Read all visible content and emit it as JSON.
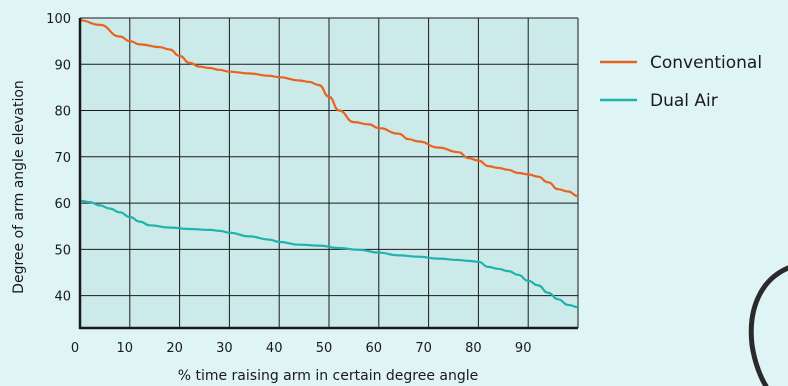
{
  "chart_data": {
    "type": "line",
    "xlabel": "% time raising arm in certain degree angle",
    "ylabel": "Degree of arm angle elevation",
    "xlim": [
      0,
      100
    ],
    "ylim": [
      33,
      100
    ],
    "x_ticks": [
      0,
      10,
      20,
      30,
      40,
      50,
      60,
      70,
      80,
      90
    ],
    "y_ticks": [
      40,
      50,
      60,
      70,
      80,
      90,
      100
    ],
    "grid": true,
    "legend_position": "right",
    "colors": {
      "plot_bg": "#cdeaea",
      "grid": "#1a1a1a",
      "axis": "#1a1a1a",
      "page_bg": "#dff4f4"
    },
    "series": [
      {
        "name": "Conventional",
        "color": "#e8641e",
        "x": [
          0,
          4,
          8,
          10,
          12,
          16,
          18,
          20,
          22,
          24,
          26,
          28,
          30,
          34,
          38,
          40,
          44,
          46,
          48,
          50,
          52,
          55,
          58,
          60,
          64,
          66,
          68,
          72,
          76,
          78,
          80,
          82,
          84,
          86,
          88,
          90,
          92,
          94,
          96,
          98,
          100
        ],
        "y": [
          99.5,
          98.5,
          96,
          95,
          94.3,
          93.7,
          93.2,
          91.8,
          90.3,
          89.5,
          89.2,
          88.8,
          88.4,
          88,
          87.5,
          87.2,
          86.5,
          86.2,
          85.5,
          83,
          80,
          77.5,
          77,
          76.2,
          75,
          73.8,
          73.3,
          72,
          71,
          69.7,
          69.2,
          68,
          67.6,
          67.2,
          66.5,
          66.2,
          65.7,
          64.5,
          63,
          62.5,
          61.5
        ]
      },
      {
        "name": "Dual Air",
        "color": "#1fb3ad",
        "x": [
          0,
          2,
          4,
          6,
          8,
          10,
          12,
          14,
          18,
          22,
          26,
          28,
          30,
          34,
          38,
          40,
          44,
          48,
          52,
          56,
          60,
          64,
          68,
          72,
          76,
          78,
          80,
          82,
          84,
          86,
          88,
          90,
          92,
          94,
          96,
          98,
          100
        ],
        "y": [
          60.5,
          60.2,
          59.5,
          58.8,
          58,
          57,
          56,
          55.2,
          54.7,
          54.4,
          54.2,
          54,
          53.6,
          52.8,
          52.1,
          51.6,
          51,
          50.8,
          50.3,
          49.9,
          49.3,
          48.7,
          48.4,
          48,
          47.7,
          47.5,
          47.3,
          46.2,
          45.8,
          45.3,
          44.5,
          43.2,
          42.2,
          40.6,
          39.2,
          38,
          37.5
        ]
      }
    ]
  }
}
